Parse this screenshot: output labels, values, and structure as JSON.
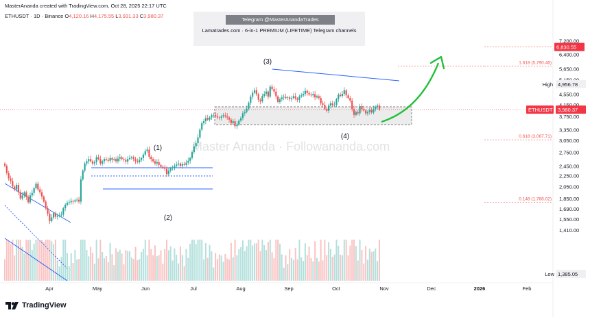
{
  "header": {
    "credit": "MasterAnanda created with TradingView.com, Oct 28, 2025 22:17 UTC",
    "symbol_line": "ETHUSDT · 1D · Binance",
    "o_label": "O",
    "o_value": "4,120.16",
    "h_label": "H",
    "h_value": "4,175.55",
    "l_label": "L",
    "l_value": "3,931.33",
    "c_label": "C",
    "c_value": "3,980.37"
  },
  "promo": {
    "badge": "Telegram @MasterAnandaTrades",
    "line": "Lamatrades.com · 6-in-1 PREMIUM (LIFETIME) Telegram channels"
  },
  "watermark": "Master Ananda · Followananda.com",
  "brand": {
    "name": "TradingView",
    "icon": "tradingview-logo-icon"
  },
  "colors": {
    "up": "#26a69a",
    "down": "#ef5350",
    "trendline": "#2962ff",
    "arrow": "#22c03a",
    "fib": "#ef5350",
    "price_tag": "#f23645",
    "dark_tag": "#131722"
  },
  "chart_data": {
    "type": "candlestick",
    "symbol": "ETHUSDT",
    "interval": "1D",
    "exchange": "Binance",
    "x_labels": [
      "Apr",
      "May",
      "Jun",
      "Jul",
      "Aug",
      "Sep",
      "Oct",
      "Nov",
      "Dec",
      "2026",
      "Feb"
    ],
    "y_ticks": [
      "7,200.00",
      "6,400.00",
      "5,650.00",
      "5,150.00",
      "4,550.00",
      "4,150.00",
      "3,750.00",
      "3,350.00",
      "3,050.00",
      "2,750.00",
      "2,450.00",
      "2,250.00",
      "2,050.00",
      "1,850.00",
      "1,690.00",
      "1,550.00",
      "1,410.00",
      "1,385.05"
    ],
    "y_tick_values": [
      7200,
      6400,
      5650,
      5150,
      4550,
      4150,
      3750,
      3350,
      3050,
      2750,
      2450,
      2250,
      2050,
      1850,
      1690,
      1550,
      1410,
      1385.05
    ],
    "y_scale": "log",
    "current_price": {
      "label": "ETHUSDT",
      "value": "3,980.37"
    },
    "high": {
      "label": "High",
      "value": "4,956.78"
    },
    "low": {
      "label": "Low",
      "value": "1,385.05"
    },
    "target": {
      "value": "6,830.55"
    },
    "fib_levels": [
      {
        "label": "1.618 (5,790.46)",
        "value": 5790.46
      },
      {
        "label": "0.618 (3,067.71)",
        "value": 3067.71
      },
      {
        "label": "0.148 (1,788.02)",
        "value": 1788.02
      }
    ],
    "wave_labels": [
      "(1)",
      "(2)",
      "(3)",
      "(4)"
    ],
    "closes": [
      2450,
      2300,
      2200,
      2150,
      2050,
      2000,
      2080,
      1950,
      1850,
      1900,
      1950,
      1870,
      1790,
      1900,
      1940,
      2020,
      2100,
      2000,
      1950,
      1880,
      1800,
      1700,
      1620,
      1520,
      1570,
      1630,
      1580,
      1590,
      1600,
      1610,
      1700,
      1750,
      1780,
      1790,
      1810,
      1800,
      1820,
      1830,
      1800,
      2180,
      2350,
      2500,
      2550,
      2600,
      2550,
      2500,
      2530,
      2640,
      2600,
      2500,
      2550,
      2600,
      2580,
      2560,
      2620,
      2580,
      2600,
      2550,
      2610,
      2640,
      2600,
      2580,
      2540,
      2600,
      2620,
      2640,
      2600,
      2550,
      2530,
      2580,
      2620,
      2700,
      2780,
      2820,
      2650,
      2600,
      2550,
      2500,
      2530,
      2470,
      2430,
      2420,
      2390,
      2280,
      2350,
      2400,
      2420,
      2450,
      2480,
      2500,
      2450,
      2490,
      2470,
      2520,
      2560,
      2620,
      2760,
      2900,
      2980,
      3130,
      3350,
      3540,
      3600,
      3700,
      3650,
      3720,
      3790,
      3800,
      3760,
      3720,
      3710,
      3750,
      3790,
      3760,
      3720,
      3650,
      3540,
      3600,
      3450,
      3500,
      3620,
      3700,
      3860,
      3900,
      4010,
      4220,
      4450,
      4600,
      4700,
      4550,
      4330,
      4270,
      4480,
      4560,
      4650,
      4450,
      4850,
      4750,
      4650,
      4460,
      4250,
      4350,
      4420,
      4440,
      4400,
      4420,
      4360,
      4400,
      4470,
      4380,
      4330,
      4460,
      4500,
      4560,
      4680,
      4600,
      4530,
      4500,
      4550,
      4420,
      4470,
      4400,
      4200,
      4150,
      4000,
      3940,
      4120,
      4200,
      4130,
      4150,
      4350,
      4520,
      4480,
      4560,
      4700,
      4500,
      4400,
      4300,
      4000,
      3800,
      3900,
      3850,
      4100,
      4000,
      3950,
      3850,
      3900,
      3960,
      3880,
      4000,
      4080,
      4120,
      3980.37
    ]
  }
}
